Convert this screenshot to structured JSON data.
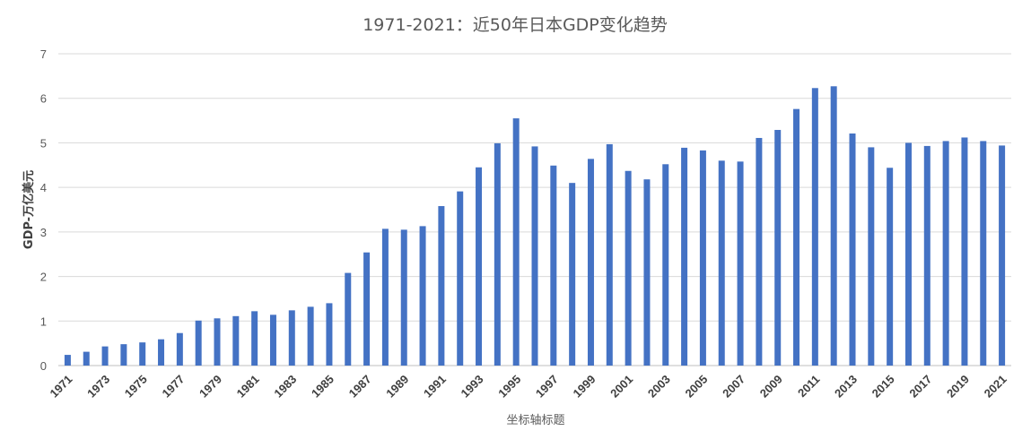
{
  "chart_data": {
    "type": "bar",
    "title": "1971-2021：近50年日本GDP变化趋势",
    "xlabel": "坐标轴标题",
    "ylabel": "GDP-万亿美元",
    "ylim": [
      0,
      7
    ],
    "yticks": [
      0,
      1,
      2,
      3,
      4,
      5,
      6,
      7
    ],
    "grid": true,
    "colors": {
      "bar": "#4472c4",
      "grid": "#d9d9d9"
    },
    "categories": [
      "1971",
      "1972",
      "1973",
      "1974",
      "1975",
      "1976",
      "1977",
      "1978",
      "1979",
      "1980",
      "1981",
      "1982",
      "1983",
      "1984",
      "1985",
      "1986",
      "1987",
      "1988",
      "1989",
      "1990",
      "1991",
      "1992",
      "1993",
      "1994",
      "1995",
      "1996",
      "1997",
      "1998",
      "1999",
      "2000",
      "2001",
      "2002",
      "2003",
      "2004",
      "2005",
      "2006",
      "2007",
      "2008",
      "2009",
      "2010",
      "2011",
      "2012",
      "2013",
      "2014",
      "2015",
      "2016",
      "2017",
      "2018",
      "2019",
      "2020",
      "2021"
    ],
    "xtick_labels": [
      "1971",
      "1973",
      "1975",
      "1977",
      "1979",
      "1981",
      "1983",
      "1985",
      "1987",
      "1989",
      "1991",
      "1993",
      "1995",
      "1997",
      "1999",
      "2001",
      "2003",
      "2005",
      "2007",
      "2009",
      "2011",
      "2013",
      "2015",
      "2017",
      "2019",
      "2021"
    ],
    "values": [
      0.24,
      0.31,
      0.43,
      0.48,
      0.52,
      0.59,
      0.73,
      1.01,
      1.06,
      1.11,
      1.22,
      1.14,
      1.24,
      1.32,
      1.4,
      2.08,
      2.54,
      3.07,
      3.05,
      3.13,
      3.58,
      3.91,
      4.45,
      4.99,
      5.55,
      4.92,
      4.49,
      4.1,
      4.64,
      4.97,
      4.37,
      4.18,
      4.52,
      4.89,
      4.83,
      4.6,
      4.58,
      5.11,
      5.29,
      5.76,
      6.23,
      6.27,
      5.21,
      4.9,
      4.44,
      5.0,
      4.93,
      5.04,
      5.12,
      5.04,
      4.94
    ]
  }
}
